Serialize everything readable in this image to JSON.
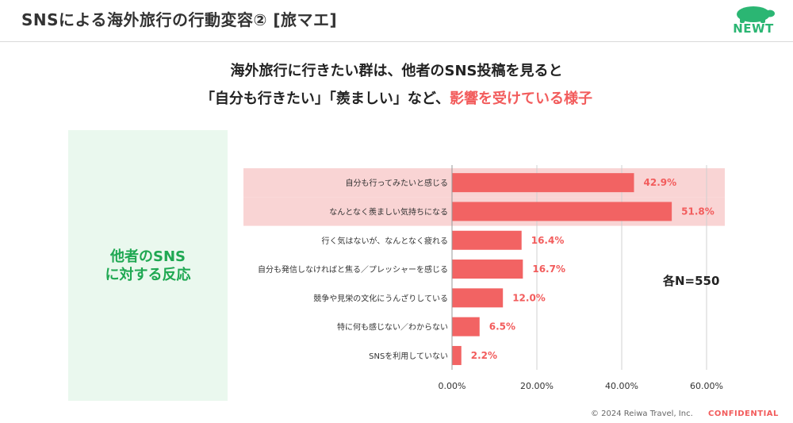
{
  "header": {
    "title": "SNSによる海外旅行の行動変容② [旅マエ]",
    "logo_text": "NEWT"
  },
  "headline": {
    "line1": "海外旅行に行きたい群は、他者のSNS投稿を見ると",
    "line2_normal": "「自分も行きたい」「羨ましい」など、",
    "line2_highlight": "影響を受けている様子"
  },
  "panel": {
    "line1": "他者のSNS",
    "line2": "に対する反応"
  },
  "n_label": "各N=550",
  "footer": {
    "copyright": "© 2024 Reiwa Travel, Inc.",
    "confidential": "CONFIDENTIAL"
  },
  "colors": {
    "bar": "#f26363",
    "highlight_band": "#f9d4d4",
    "accent_green": "#2bb673",
    "accent_red": "#f25c5c"
  },
  "chart_data": {
    "type": "bar",
    "orientation": "horizontal",
    "categories": [
      "自分も行ってみたいと感じる",
      "なんとなく羨ましい気持ちになる",
      "行く気はないが、なんとなく疲れる",
      "自分も発信しなければと焦る／プレッシャーを感じる",
      "競争や見栄の文化にうんざりしている",
      "特に何も感じない／わからない",
      "SNSを利用していない"
    ],
    "values": [
      42.9,
      51.8,
      16.4,
      16.7,
      12.0,
      6.5,
      2.2
    ],
    "value_labels": [
      "42.9%",
      "51.8%",
      "16.4%",
      "16.7%",
      "12.0%",
      "6.5%",
      "2.2%"
    ],
    "highlighted": [
      true,
      true,
      false,
      false,
      false,
      false,
      false
    ],
    "xlim": [
      0,
      60
    ],
    "ticks": [
      0,
      20,
      40,
      60
    ],
    "tick_labels": [
      "0.00%",
      "20.00%",
      "40.00%",
      "60.00%"
    ],
    "grid": true
  }
}
